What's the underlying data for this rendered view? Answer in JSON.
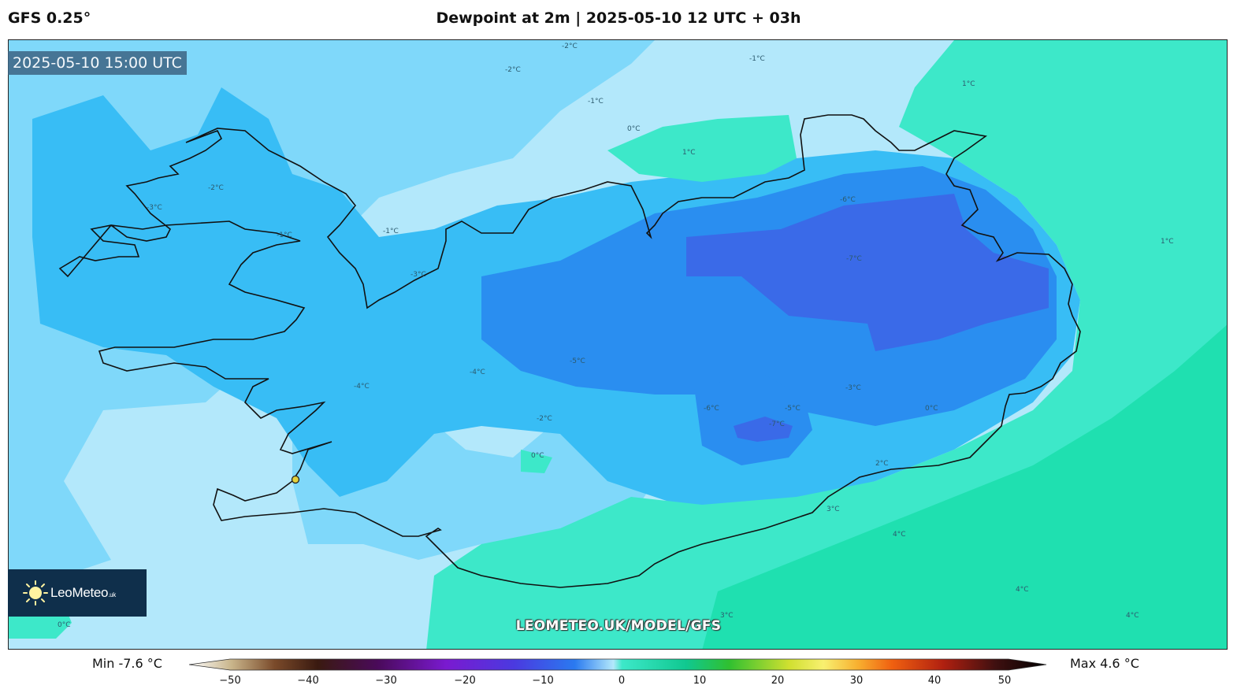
{
  "header": {
    "model": "GFS 0.25°",
    "title": "Dewpoint at 2m | 2025-05-10 12 UTC + 03h"
  },
  "map": {
    "valid_time": "2025-05-10 15:00 UTC",
    "watermark": "LEOMETEO.UK/MODEL/GFS",
    "logo": {
      "name": "LeoMeteo",
      "suffix": ".uk"
    },
    "contour_labels": [
      "-2°C",
      "-1°C",
      "-2°C",
      "-1°C",
      "1°C",
      "0°C",
      "1°C",
      "-3°C",
      "-2°C",
      "-1°C",
      "-1°C",
      "-3°C",
      "-6°C",
      "-7°C",
      "1°C",
      "-5°C",
      "-4°C",
      "-4°C",
      "-2°C",
      "0°C",
      "-6°C",
      "-7°C",
      "-5°C",
      "-3°C",
      "0°C",
      "2°C",
      "3°C",
      "4°C",
      "4°C",
      "3°C",
      "4°C",
      "0°C"
    ]
  },
  "colorbar": {
    "min_label": "Min -7.6 °C",
    "max_label": "Max 4.6 °C",
    "ticks": [
      "−50",
      "−40",
      "−30",
      "−20",
      "−10",
      "0",
      "10",
      "20",
      "30",
      "40",
      "50"
    ],
    "range": [
      -50,
      50
    ]
  },
  "colors": {
    "sea_cold": "#b3e8fb",
    "land_cool": "#7fd8fa",
    "cold_mid": "#38bdf5",
    "cold_deep": "#2a8ef0",
    "cold_core": "#3a6ae8",
    "warm": "#3de8c9",
    "warm_deep": "#1fe0b0",
    "coast": "#111111",
    "logo_bg": "#0f2f4b"
  }
}
